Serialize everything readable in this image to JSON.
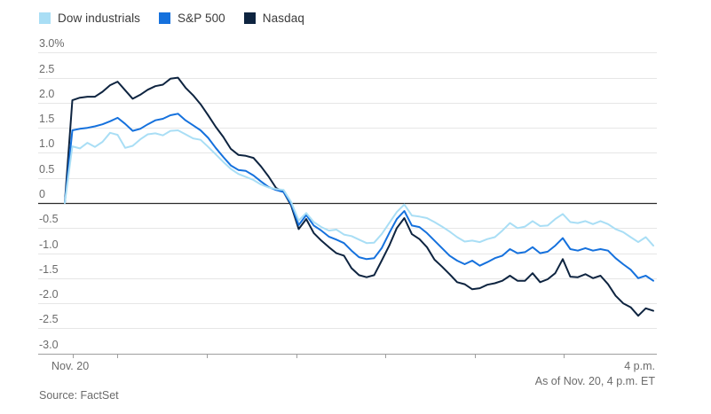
{
  "legend": {
    "items": [
      {
        "label": "Dow industrials",
        "color": "#a9def5"
      },
      {
        "label": "S&P 500",
        "color": "#1571dd"
      },
      {
        "label": "Nasdaq",
        "color": "#0e2440"
      }
    ]
  },
  "chart_data": {
    "type": "line",
    "title": "",
    "unit": "%",
    "grid": true,
    "zero_line": true,
    "legend_position": "top-left",
    "x_axis": {
      "start_label": "Nov. 20",
      "end_label": "4 p.m.",
      "session": "9:30 a.m. - 4 p.m. ET",
      "tick_style": "unlabeled hourly ticks"
    },
    "y_axis": {
      "tick_labels": [
        "3.0%",
        "2.5",
        "2.0",
        "1.5",
        "1.0",
        "0.5",
        "0",
        "-0.5",
        "-1.0",
        "-1.5",
        "-2.0",
        "-2.5",
        "-3.0"
      ],
      "tick_values": [
        3.0,
        2.5,
        2.0,
        1.5,
        1.0,
        0.5,
        0,
        -0.5,
        -1.0,
        -1.5,
        -2.0,
        -2.5,
        -3.0
      ],
      "ylim": [
        -3.0,
        3.0
      ]
    },
    "x_interval_minutes": 5,
    "x_total_minutes": 390,
    "series": [
      {
        "name": "Nasdaq",
        "color": "#0e2440",
        "values": [
          0,
          2.05,
          2.1,
          2.12,
          2.12,
          2.22,
          2.35,
          2.42,
          2.25,
          2.08,
          2.16,
          2.26,
          2.33,
          2.36,
          2.48,
          2.5,
          2.3,
          2.15,
          1.97,
          1.75,
          1.52,
          1.32,
          1.08,
          0.96,
          0.94,
          0.9,
          0.73,
          0.53,
          0.3,
          0.22,
          -0.05,
          -0.52,
          -0.32,
          -0.6,
          -0.75,
          -0.88,
          -1.0,
          -1.05,
          -1.3,
          -1.44,
          -1.48,
          -1.44,
          -1.15,
          -0.85,
          -0.5,
          -0.3,
          -0.62,
          -0.72,
          -0.88,
          -1.13,
          -1.27,
          -1.42,
          -1.58,
          -1.62,
          -1.72,
          -1.7,
          -1.63,
          -1.6,
          -1.55,
          -1.45,
          -1.55,
          -1.55,
          -1.4,
          -1.58,
          -1.52,
          -1.4,
          -1.12,
          -1.47,
          -1.48,
          -1.42,
          -1.5,
          -1.45,
          -1.62,
          -1.85,
          -2.0,
          -2.08,
          -2.25,
          -2.1,
          -2.15
        ]
      },
      {
        "name": "S&P 500",
        "color": "#1571dd",
        "values": [
          0,
          1.45,
          1.48,
          1.5,
          1.53,
          1.57,
          1.63,
          1.7,
          1.58,
          1.44,
          1.48,
          1.57,
          1.65,
          1.68,
          1.75,
          1.78,
          1.65,
          1.55,
          1.45,
          1.3,
          1.1,
          0.92,
          0.75,
          0.66,
          0.64,
          0.55,
          0.43,
          0.32,
          0.26,
          0.22,
          -0.02,
          -0.44,
          -0.24,
          -0.45,
          -0.55,
          -0.67,
          -0.73,
          -0.8,
          -0.95,
          -1.08,
          -1.12,
          -1.1,
          -0.9,
          -0.6,
          -0.32,
          -0.16,
          -0.45,
          -0.48,
          -0.6,
          -0.75,
          -0.9,
          -1.05,
          -1.15,
          -1.22,
          -1.15,
          -1.25,
          -1.18,
          -1.1,
          -1.05,
          -0.92,
          -1.0,
          -0.98,
          -0.88,
          -1.0,
          -0.97,
          -0.85,
          -0.7,
          -0.92,
          -0.95,
          -0.9,
          -0.95,
          -0.92,
          -0.95,
          -1.1,
          -1.22,
          -1.33,
          -1.5,
          -1.45,
          -1.55
        ]
      },
      {
        "name": "Dow industrials",
        "color": "#a9def5",
        "values": [
          0,
          1.13,
          1.09,
          1.2,
          1.12,
          1.22,
          1.4,
          1.36,
          1.1,
          1.14,
          1.27,
          1.37,
          1.39,
          1.35,
          1.44,
          1.45,
          1.37,
          1.29,
          1.26,
          1.12,
          0.97,
          0.82,
          0.68,
          0.58,
          0.52,
          0.46,
          0.37,
          0.31,
          0.28,
          0.26,
          0.02,
          -0.35,
          -0.2,
          -0.38,
          -0.48,
          -0.55,
          -0.53,
          -0.63,
          -0.66,
          -0.73,
          -0.8,
          -0.79,
          -0.62,
          -0.4,
          -0.18,
          -0.03,
          -0.25,
          -0.27,
          -0.3,
          -0.38,
          -0.47,
          -0.57,
          -0.68,
          -0.77,
          -0.75,
          -0.78,
          -0.72,
          -0.68,
          -0.55,
          -0.4,
          -0.5,
          -0.47,
          -0.36,
          -0.46,
          -0.45,
          -0.32,
          -0.22,
          -0.38,
          -0.4,
          -0.36,
          -0.42,
          -0.36,
          -0.42,
          -0.52,
          -0.58,
          -0.68,
          -0.78,
          -0.68,
          -0.85
        ]
      }
    ],
    "annotation": "As of Nov. 20, 4 p.m. ET",
    "source": "Source: FactSet",
    "colors": {
      "gridline": "#e6e6e6",
      "zero_line": "#2b2b2b",
      "axis_line": "#9e9e9e",
      "tick_text": "#6b6b6b"
    }
  }
}
